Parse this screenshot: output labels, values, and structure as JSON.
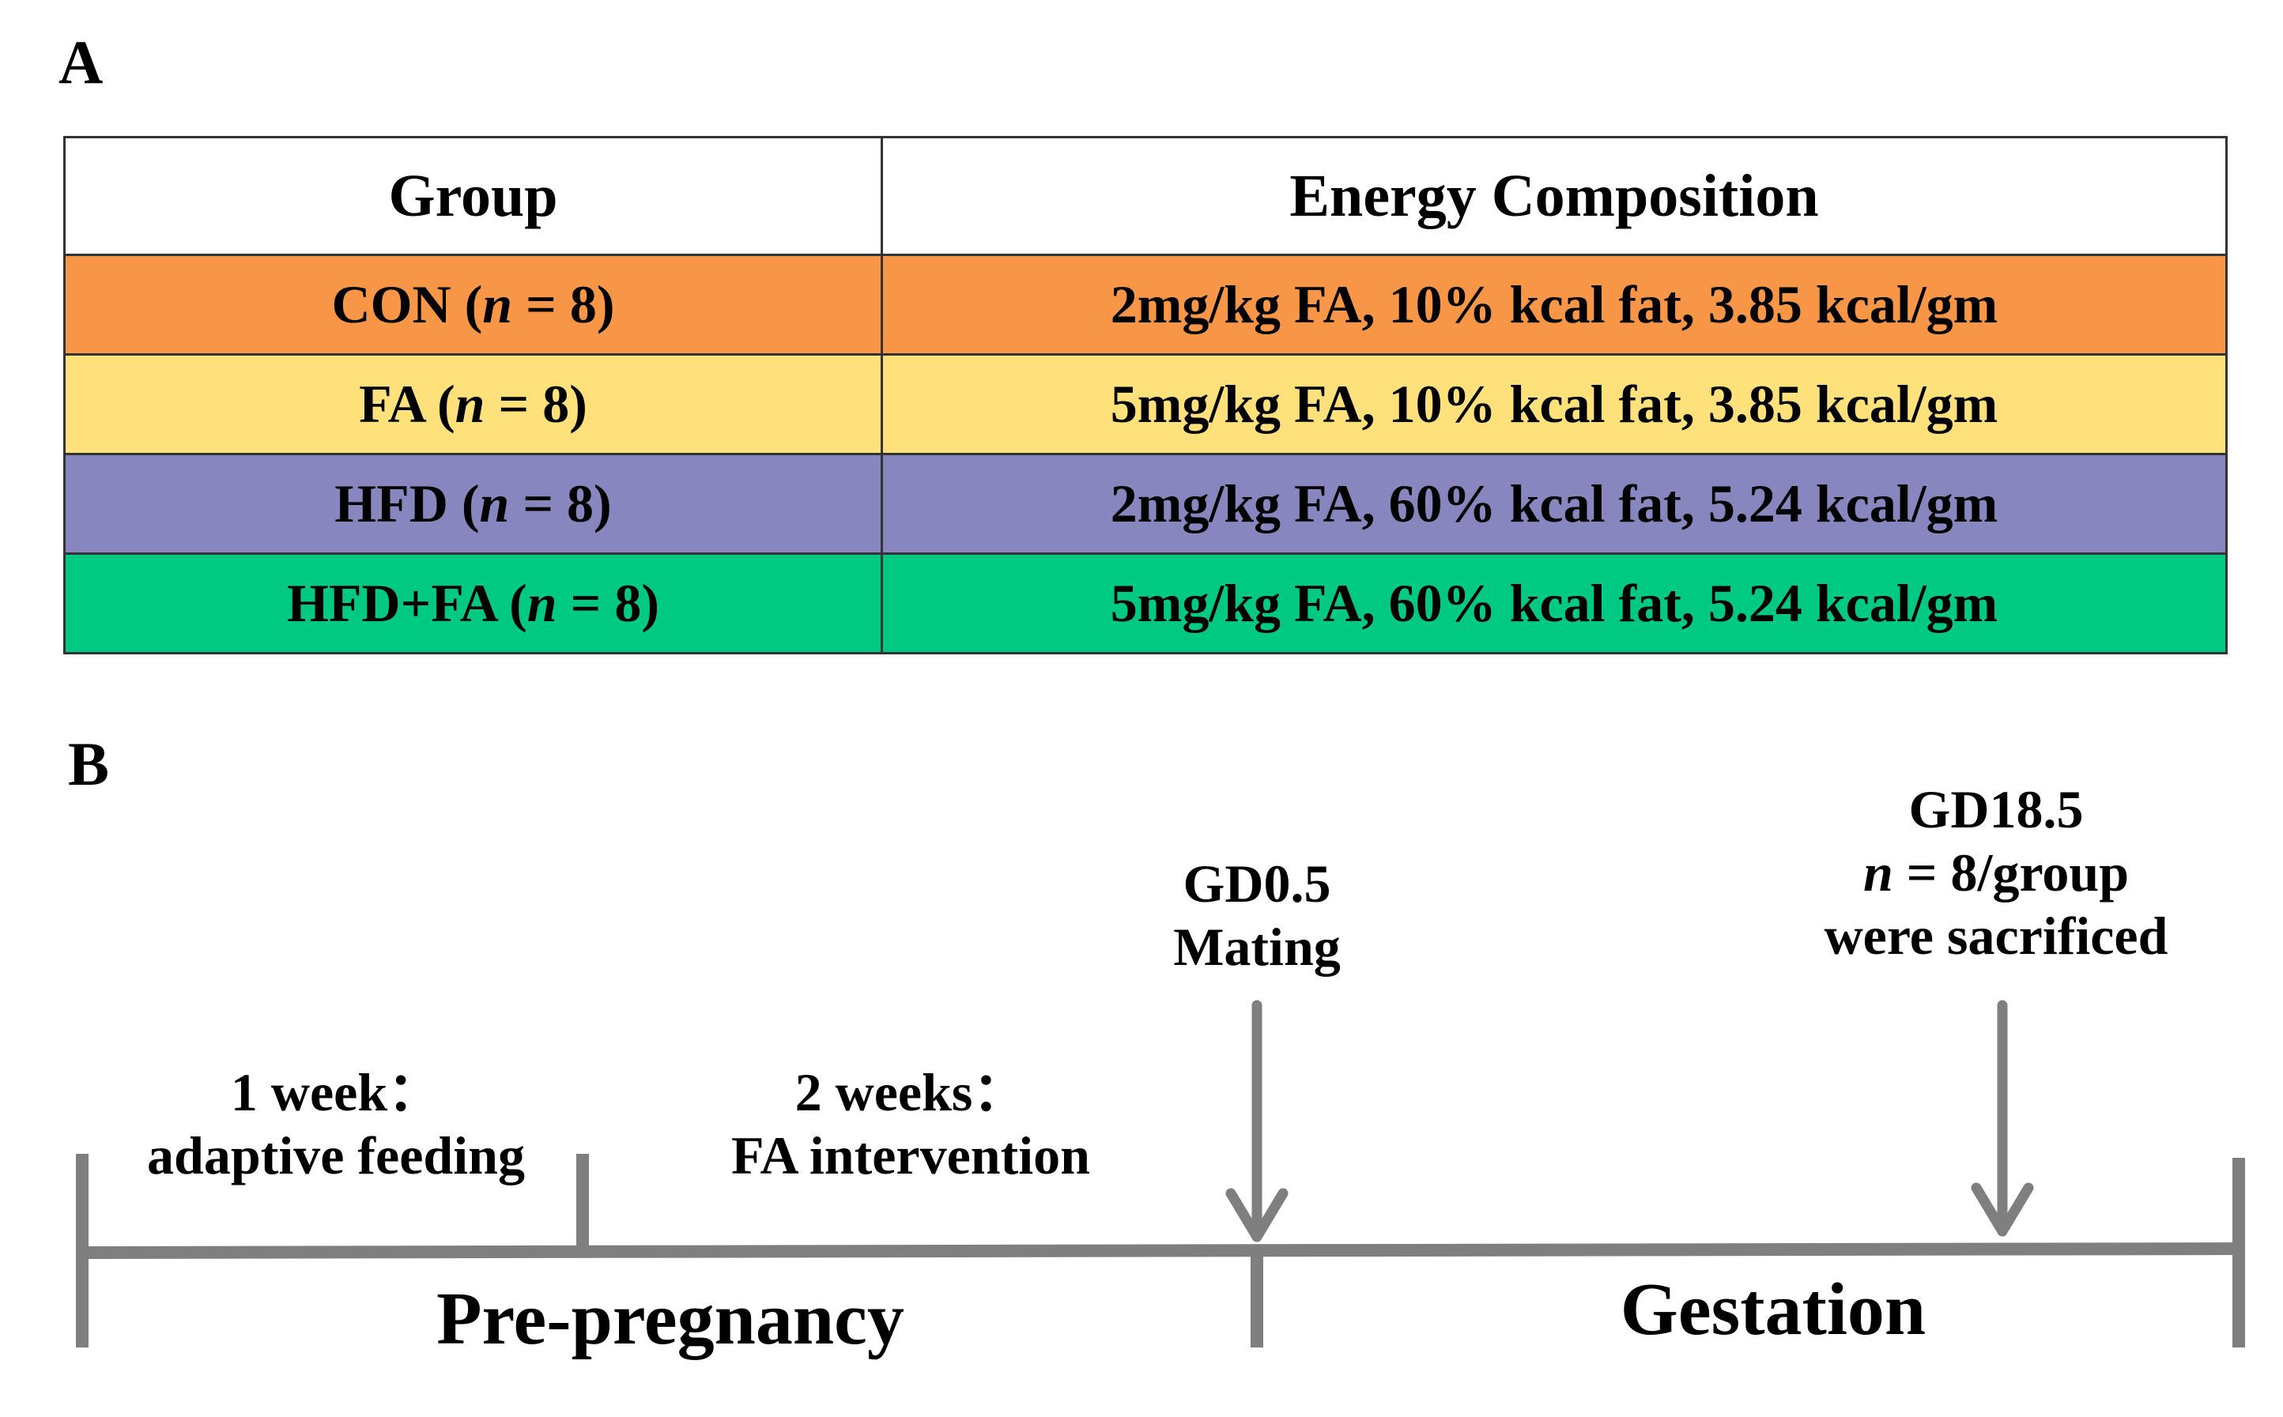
{
  "panel_a": {
    "label": "A",
    "headers": {
      "group": "Group",
      "energy": "Energy Composition"
    },
    "rows": [
      {
        "group": "CON",
        "n_var": "n",
        "n_eq": " = 8)",
        "energy": "2mg/kg FA, 10% kcal fat, 3.85 kcal/gm",
        "color": "#F79646"
      },
      {
        "group": "FA",
        "n_var": "n",
        "n_eq": " = 8)",
        "energy": "5mg/kg FA, 10% kcal fat, 3.85 kcal/gm",
        "color": "#FFE17C"
      },
      {
        "group": "HFD",
        "n_var": "n",
        "n_eq": " = 8)",
        "energy": "2mg/kg FA, 60% kcal fat, 5.24 kcal/gm",
        "color": "#8786BF"
      },
      {
        "group": "HFD+FA",
        "n_var": "n",
        "n_eq": " = 8)",
        "energy": "5mg/kg FA, 60% kcal fat, 5.24 kcal/gm",
        "color": "#00C984"
      }
    ]
  },
  "panel_b": {
    "label": "B",
    "line_color": "#7F7F7F",
    "phase1": {
      "line1": "1 week：",
      "line2": "adaptive feeding"
    },
    "phase2": {
      "line1": "2 weeks：",
      "line2": "FA intervention"
    },
    "mating": {
      "line1": "GD0.5",
      "line2": "Mating"
    },
    "sacrifice": {
      "line1": "GD18.5",
      "n_var": "n",
      "line2_rest": " = 8/group",
      "line3": "were sacrificed"
    },
    "pre_pregnancy": "Pre-pregnancy",
    "gestation": "Gestation"
  }
}
